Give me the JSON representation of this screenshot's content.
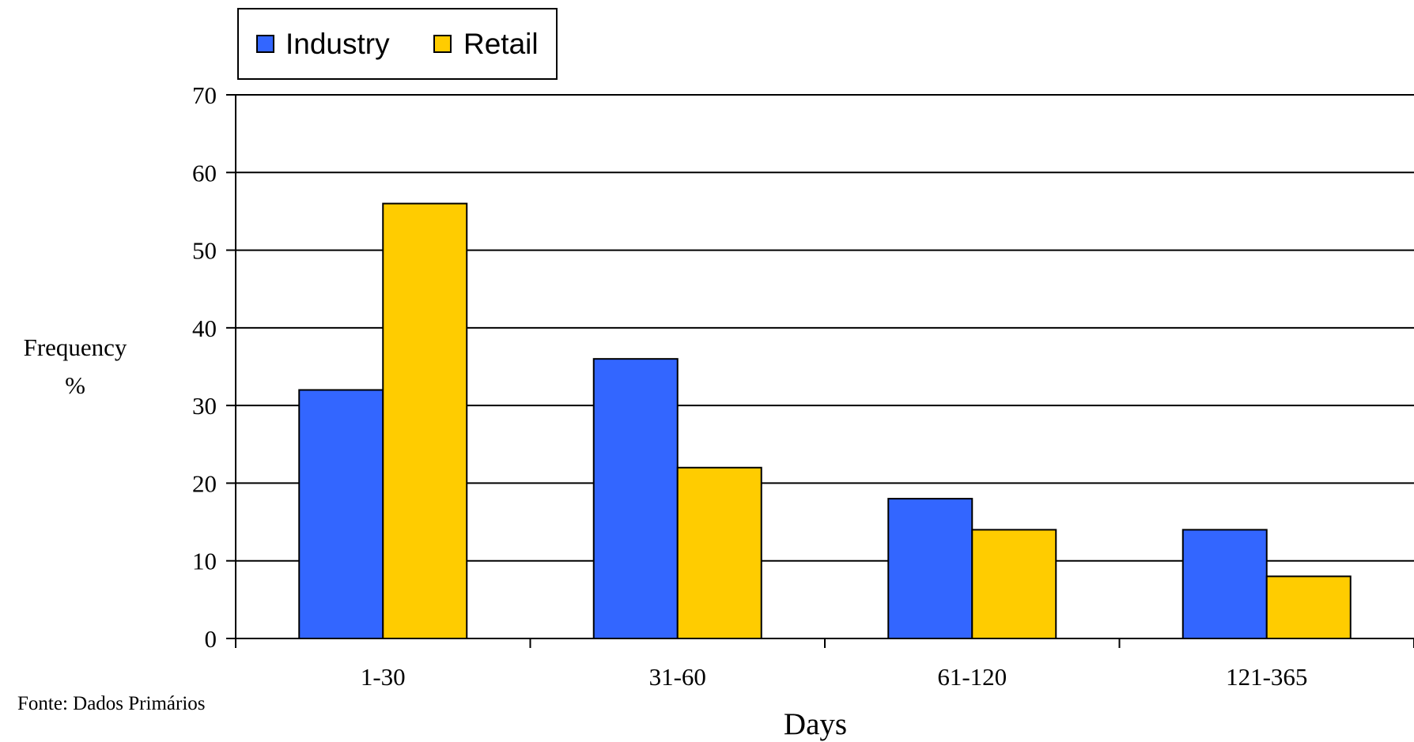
{
  "chart_data": {
    "type": "bar",
    "categories": [
      "1-30",
      "31-60",
      "61-120",
      "121-365"
    ],
    "series": [
      {
        "name": "Industry",
        "values": [
          32,
          36,
          18,
          14
        ],
        "color": "#3366FF"
      },
      {
        "name": "Retail",
        "values": [
          56,
          22,
          14,
          8
        ],
        "color": "#FFCC00"
      }
    ],
    "ylim": [
      0,
      70
    ],
    "yticks": [
      "0",
      "10",
      "20",
      "30",
      "40",
      "50",
      "60",
      "70"
    ],
    "ylabel_line1": "Frequency",
    "ylabel_line2": "%",
    "xlabel": "Days",
    "grid": true,
    "legend_position": "top-left"
  },
  "source_note": "Fonte: Dados Primários"
}
